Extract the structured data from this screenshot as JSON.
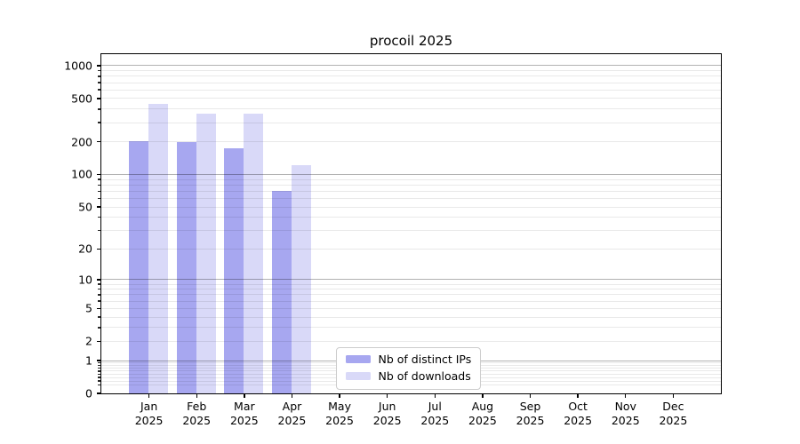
{
  "chart_data": {
    "type": "bar",
    "title": "procoil 2025",
    "x_months": [
      "Jan",
      "Feb",
      "Mar",
      "Apr",
      "May",
      "Jun",
      "Jul",
      "Aug",
      "Sep",
      "Oct",
      "Nov",
      "Dec"
    ],
    "x_year": "2025",
    "series": [
      {
        "name": "Nb of distinct IPs",
        "color": "#a7a7f0",
        "values": [
          200,
          197,
          172,
          70,
          0,
          0,
          0,
          0,
          0,
          0,
          0,
          0
        ]
      },
      {
        "name": "Nb of downloads",
        "color": "#d9d9f8",
        "values": [
          445,
          362,
          357,
          120,
          0,
          0,
          0,
          0,
          0,
          0,
          0,
          0
        ]
      }
    ],
    "y_tick_labels": [
      1000,
      500,
      200,
      100,
      50,
      20,
      10,
      5,
      2,
      1,
      0
    ],
    "y_major_gridlines": [
      1000,
      100,
      10,
      1
    ],
    "y_minor_gridline_decades": [
      0.1,
      1,
      10,
      100
    ],
    "scale": "log10(1+value)",
    "ylim": [
      0,
      1270
    ],
    "grid": "horizontal",
    "legend_position": "inside-bottom-center"
  },
  "colors": {
    "background": "#ffffff",
    "spine": "#000000",
    "text": "#000000",
    "legend_border": "#cccccc",
    "bar_distinct_ips": "#a7a7f0",
    "bar_downloads": "#d9d9f8"
  }
}
